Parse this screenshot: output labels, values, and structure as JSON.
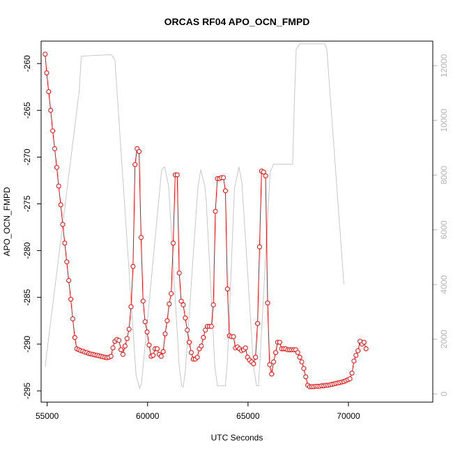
{
  "chart_data": {
    "type": "line",
    "title": "ORCAS RF04 APO_OCN_FMPD",
    "xlabel": "UTC Seconds",
    "ylabel": "APO_OCN_FMPD",
    "xlim": [
      54700,
      74200
    ],
    "ylim": [
      -296.2,
      -257.6
    ],
    "y2lim": [
      -300,
      12900
    ],
    "x_ticks": [
      55000,
      60000,
      65000,
      70000
    ],
    "y_ticks": [
      -260,
      -265,
      -270,
      -275,
      -280,
      -285,
      -290,
      -295
    ],
    "y2_ticks": [
      0,
      2000,
      4000,
      6000,
      8000,
      10000,
      12000
    ],
    "grid": false,
    "series": [
      {
        "color": "#ff0000",
        "axis": "left",
        "style": "line-with-points",
        "points": [
          [
            54900,
            -259.0
          ],
          [
            54975,
            -261.0
          ],
          [
            55075,
            -263.0
          ],
          [
            55175,
            -265.0
          ],
          [
            55275,
            -267.2
          ],
          [
            55375,
            -269.1
          ],
          [
            55475,
            -271.1
          ],
          [
            55575,
            -273.1
          ],
          [
            55675,
            -275.1
          ],
          [
            55775,
            -277.2
          ],
          [
            55875,
            -279.2
          ],
          [
            55975,
            -281.2
          ],
          [
            56075,
            -283.2
          ],
          [
            56175,
            -285.2
          ],
          [
            56275,
            -287.3
          ],
          [
            56375,
            -289.3
          ],
          [
            56475,
            -290.5
          ],
          [
            56575,
            -290.6
          ],
          [
            56675,
            -290.7
          ],
          [
            56775,
            -290.75
          ],
          [
            56875,
            -290.85
          ],
          [
            56975,
            -290.9
          ],
          [
            57075,
            -291.0
          ],
          [
            57175,
            -291.05
          ],
          [
            57275,
            -291.1
          ],
          [
            57375,
            -291.15
          ],
          [
            57475,
            -291.2
          ],
          [
            57575,
            -291.25
          ],
          [
            57675,
            -291.3
          ],
          [
            57775,
            -291.35
          ],
          [
            57875,
            -291.4
          ],
          [
            57975,
            -291.45
          ],
          [
            58075,
            -291.4
          ],
          [
            58175,
            -291.3
          ],
          [
            58275,
            -290.4
          ],
          [
            58375,
            -289.7
          ],
          [
            58475,
            -289.5
          ],
          [
            58575,
            -289.6
          ],
          [
            58675,
            -290.6
          ],
          [
            58775,
            -291.1
          ],
          [
            58875,
            -290.2
          ],
          [
            58975,
            -289.4
          ],
          [
            59075,
            -288.4
          ],
          [
            59175,
            -286.0
          ],
          [
            59275,
            -281.7
          ],
          [
            59375,
            -270.8
          ],
          [
            59475,
            -269.1
          ],
          [
            59575,
            -269.4
          ],
          [
            59675,
            -278.6
          ],
          [
            59775,
            -285.4
          ],
          [
            59875,
            -287.6
          ],
          [
            59975,
            -288.7
          ],
          [
            60075,
            -290.1
          ],
          [
            60175,
            -291.3
          ],
          [
            60275,
            -291.2
          ],
          [
            60375,
            -290.5
          ],
          [
            60475,
            -290.5
          ],
          [
            60575,
            -291.1
          ],
          [
            60675,
            -291.3
          ],
          [
            60775,
            -290.8
          ],
          [
            60875,
            -288.9
          ],
          [
            60975,
            -287.5
          ],
          [
            61075,
            -285.7
          ],
          [
            61175,
            -284.6
          ],
          [
            61275,
            -279.2
          ],
          [
            61375,
            -271.9
          ],
          [
            61475,
            -271.9
          ],
          [
            61575,
            -282.4
          ],
          [
            61675,
            -285.4
          ],
          [
            61775,
            -285.8
          ],
          [
            61875,
            -287.2
          ],
          [
            61975,
            -288.5
          ],
          [
            62075,
            -289.8
          ],
          [
            62175,
            -290.9
          ],
          [
            62275,
            -291.6
          ],
          [
            62375,
            -291.6
          ],
          [
            62475,
            -291.4
          ],
          [
            62575,
            -290.5
          ],
          [
            62675,
            -290.2
          ],
          [
            62775,
            -289.3
          ],
          [
            62875,
            -288.5
          ],
          [
            62975,
            -288.1
          ],
          [
            63075,
            -288.1
          ],
          [
            63175,
            -288.1
          ],
          [
            63275,
            -285.8
          ],
          [
            63375,
            -275.8
          ],
          [
            63475,
            -272.3
          ],
          [
            63575,
            -272.3
          ],
          [
            63675,
            -272.2
          ],
          [
            63775,
            -272.2
          ],
          [
            63875,
            -273.6
          ],
          [
            63975,
            -284.1
          ],
          [
            64075,
            -289.1
          ],
          [
            64175,
            -289.2
          ],
          [
            64275,
            -289.2
          ],
          [
            64375,
            -290.4
          ],
          [
            64475,
            -290.3
          ],
          [
            64575,
            -290.5
          ],
          [
            64675,
            -290.7
          ],
          [
            64775,
            -290.6
          ],
          [
            64875,
            -290.4
          ],
          [
            64975,
            -291.4
          ],
          [
            65075,
            -291.7
          ],
          [
            65175,
            -291.9
          ],
          [
            65275,
            -292.1
          ],
          [
            65375,
            -291.4
          ],
          [
            65475,
            -287.8
          ],
          [
            65575,
            -279.6
          ],
          [
            65675,
            -271.5
          ],
          [
            65775,
            -271.6
          ],
          [
            65875,
            -272.0
          ],
          [
            65975,
            -285.6
          ],
          [
            66075,
            -292.2
          ],
          [
            66175,
            -293.2
          ],
          [
            66275,
            -291.9
          ],
          [
            66375,
            -290.9
          ],
          [
            66475,
            -289.8
          ],
          [
            66575,
            -289.8
          ],
          [
            66675,
            -290.5
          ],
          [
            66775,
            -290.5
          ],
          [
            66875,
            -290.5
          ],
          [
            66975,
            -290.6
          ],
          [
            67075,
            -290.6
          ],
          [
            67175,
            -290.6
          ],
          [
            67275,
            -290.6
          ],
          [
            67375,
            -290.6
          ],
          [
            67475,
            -290.9
          ],
          [
            67575,
            -291.4
          ],
          [
            67675,
            -291.9
          ],
          [
            67775,
            -292.6
          ],
          [
            67875,
            -293.5
          ],
          [
            67975,
            -294.4
          ],
          [
            68075,
            -294.55
          ],
          [
            68175,
            -294.55
          ],
          [
            68275,
            -294.55
          ],
          [
            68375,
            -294.5
          ],
          [
            68475,
            -294.5
          ],
          [
            68575,
            -294.5
          ],
          [
            68675,
            -294.45
          ],
          [
            68775,
            -294.45
          ],
          [
            68875,
            -294.4
          ],
          [
            68975,
            -294.4
          ],
          [
            69075,
            -294.35
          ],
          [
            69175,
            -294.3
          ],
          [
            69275,
            -294.25
          ],
          [
            69375,
            -294.2
          ],
          [
            69475,
            -294.15
          ],
          [
            69575,
            -294.1
          ],
          [
            69675,
            -294.05
          ],
          [
            69775,
            -294.0
          ],
          [
            69875,
            -293.9
          ],
          [
            69975,
            -293.8
          ],
          [
            70075,
            -293.7
          ],
          [
            70175,
            -293.1
          ],
          [
            70275,
            -291.8
          ],
          [
            70375,
            -291.2
          ],
          [
            70475,
            -290.7
          ],
          [
            70575,
            -289.7
          ],
          [
            70675,
            -290.0
          ],
          [
            70775,
            -289.8
          ],
          [
            70875,
            -290.5
          ]
        ]
      },
      {
        "color": "#c8c8c8",
        "axis": "right",
        "style": "line",
        "points": [
          [
            54900,
            1000
          ],
          [
            56600,
            11100
          ],
          [
            56700,
            12350
          ],
          [
            57950,
            12400
          ],
          [
            58200,
            12400
          ],
          [
            58375,
            12200
          ],
          [
            59425,
            700
          ],
          [
            59600,
            200
          ],
          [
            59700,
            400
          ],
          [
            60700,
            8200
          ],
          [
            60850,
            8300
          ],
          [
            61050,
            7600
          ],
          [
            61575,
            1000
          ],
          [
            61700,
            300
          ],
          [
            61775,
            250
          ],
          [
            61875,
            800
          ],
          [
            62500,
            7500
          ],
          [
            62650,
            8200
          ],
          [
            62850,
            7600
          ],
          [
            62925,
            7000
          ],
          [
            63350,
            1000
          ],
          [
            63475,
            300
          ],
          [
            63875,
            300
          ],
          [
            63975,
            1200
          ],
          [
            64325,
            7500
          ],
          [
            64550,
            8300
          ],
          [
            64700,
            7700
          ],
          [
            65275,
            1000
          ],
          [
            65425,
            300
          ],
          [
            65525,
            300
          ],
          [
            65700,
            2600
          ],
          [
            66100,
            8100
          ],
          [
            66275,
            8400
          ],
          [
            67225,
            8400
          ],
          [
            67300,
            10500
          ],
          [
            67400,
            12600
          ],
          [
            67575,
            12800
          ],
          [
            68825,
            12800
          ],
          [
            68925,
            12600
          ],
          [
            69775,
            4000
          ]
        ]
      }
    ]
  }
}
